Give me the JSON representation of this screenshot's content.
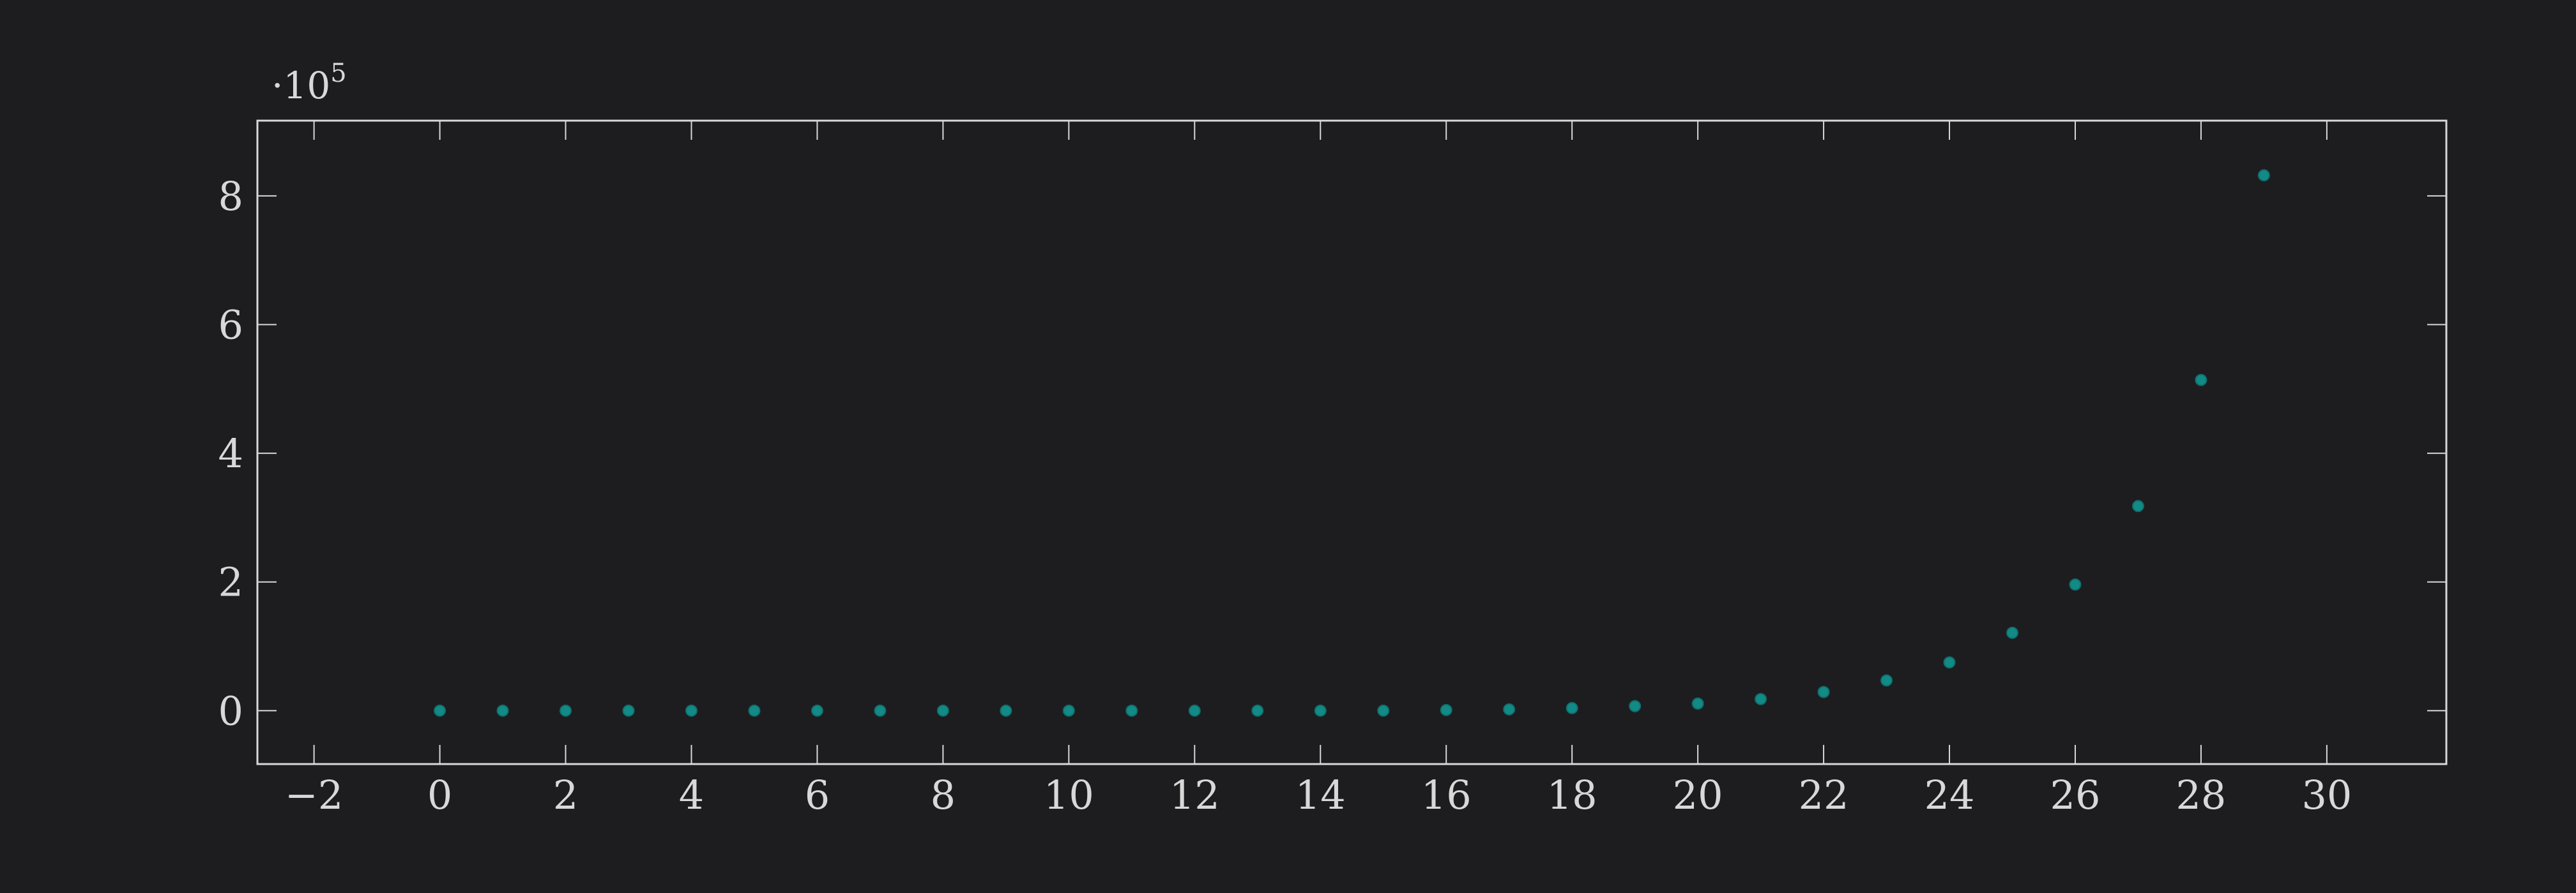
{
  "colors": {
    "background": "#1d1d20",
    "axis": "#d8d8d8",
    "marker": "#128a86"
  },
  "chart_data": {
    "type": "scatter",
    "title": "",
    "xlabel": "",
    "ylabel": "",
    "y_multiplier": {
      "prefix": "·10",
      "exponent": "5"
    },
    "grid": false,
    "xlim": [
      -2.9,
      31.9
    ],
    "ylim": [
      -0.83,
      9.17
    ],
    "x_ticks": [
      -2,
      0,
      2,
      4,
      6,
      8,
      10,
      12,
      14,
      16,
      18,
      20,
      22,
      24,
      26,
      28,
      30
    ],
    "x_tick_labels": [
      "−2",
      "0",
      "2",
      "4",
      "6",
      "8",
      "10",
      "12",
      "14",
      "16",
      "18",
      "20",
      "22",
      "24",
      "26",
      "28",
      "30"
    ],
    "y_ticks": [
      0,
      2,
      4,
      6,
      8
    ],
    "y_tick_labels": [
      "0",
      "2",
      "4",
      "6",
      "8"
    ],
    "series": [
      {
        "x": [
          0,
          1,
          2,
          3,
          4,
          5,
          6,
          7,
          8,
          9,
          10,
          11,
          12,
          13,
          14,
          15,
          16,
          17,
          18,
          19,
          20,
          21,
          22,
          23,
          24,
          25,
          26,
          27,
          28,
          29
        ],
        "y": [
          0,
          0,
          0,
          0,
          0,
          0,
          0,
          0,
          0,
          0,
          0,
          0,
          0,
          0,
          0,
          0,
          0.01,
          0.02,
          0.04,
          0.07,
          0.11,
          0.18,
          0.29,
          0.47,
          0.75,
          1.21,
          1.96,
          3.18,
          5.14,
          8.32
        ]
      }
    ]
  }
}
